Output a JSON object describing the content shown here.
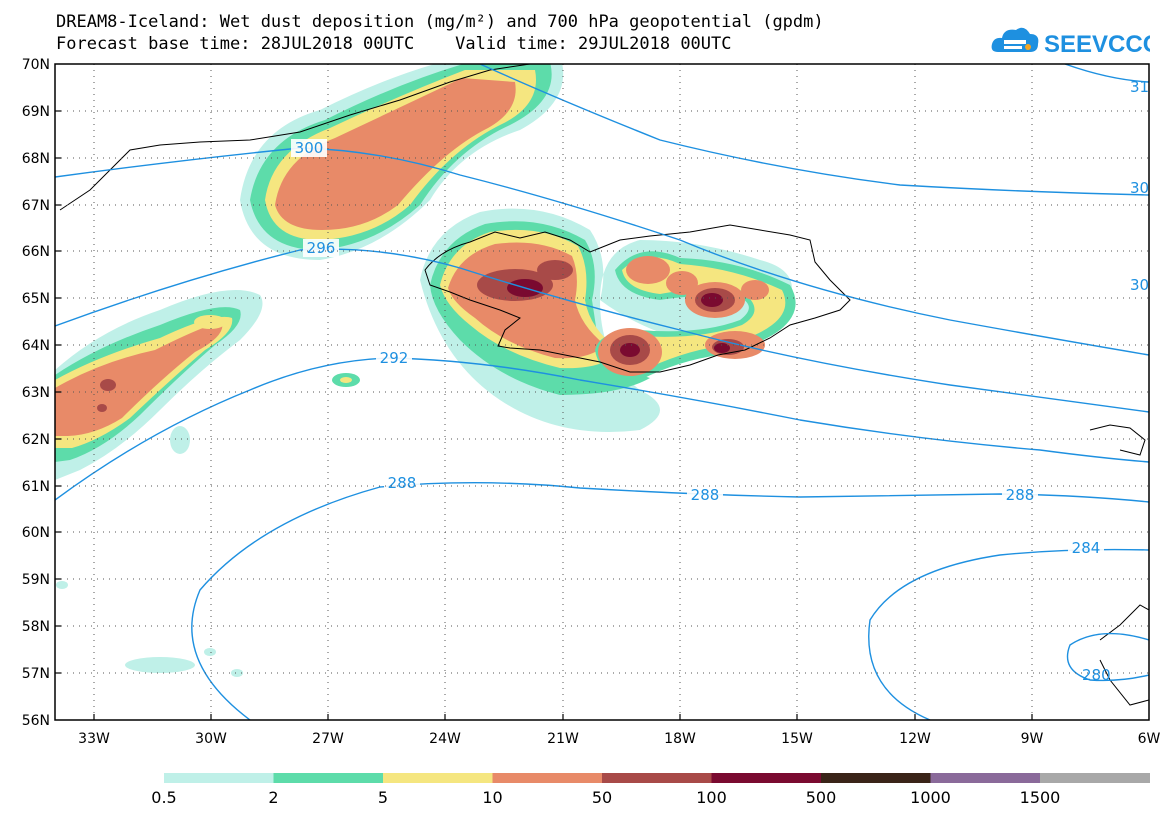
{
  "header": {
    "title_line1": "DREAM8-Iceland: Wet dust deposition (mg/m²) and 700 hPa geopotential (gpdm)",
    "title_line2": "Forecast base time: 28JUL2018 00UTC    Valid time: 29JUL2018 00UTC"
  },
  "logo": {
    "text": "SEEVCCC",
    "icon": "cloud-icon",
    "color": "#1e90e0"
  },
  "axes": {
    "lat_labels": [
      "70N",
      "69N",
      "68N",
      "67N",
      "66N",
      "65N",
      "64N",
      "63N",
      "62N",
      "61N",
      "60N",
      "59N",
      "58N",
      "57N",
      "56N"
    ],
    "lon_labels": [
      "33W",
      "30W",
      "27W",
      "24W",
      "21W",
      "18W",
      "15W",
      "12W",
      "9W",
      "6W"
    ]
  },
  "contours": {
    "color": "#1e90e0",
    "labels": [
      "300",
      "296",
      "292",
      "288",
      "288",
      "288",
      "284",
      "31",
      "30",
      "30",
      "280"
    ]
  },
  "colorbar": {
    "colors": [
      "#bff0e8",
      "#5ddcaa",
      "#f5e680",
      "#e88a68",
      "#a84a48",
      "#7a0a30",
      "#3a2418",
      "#8a6a9a",
      "#a8a8a8"
    ],
    "labels": [
      "0.5",
      "2",
      "5",
      "10",
      "50",
      "100",
      "500",
      "1000",
      "1500"
    ]
  }
}
